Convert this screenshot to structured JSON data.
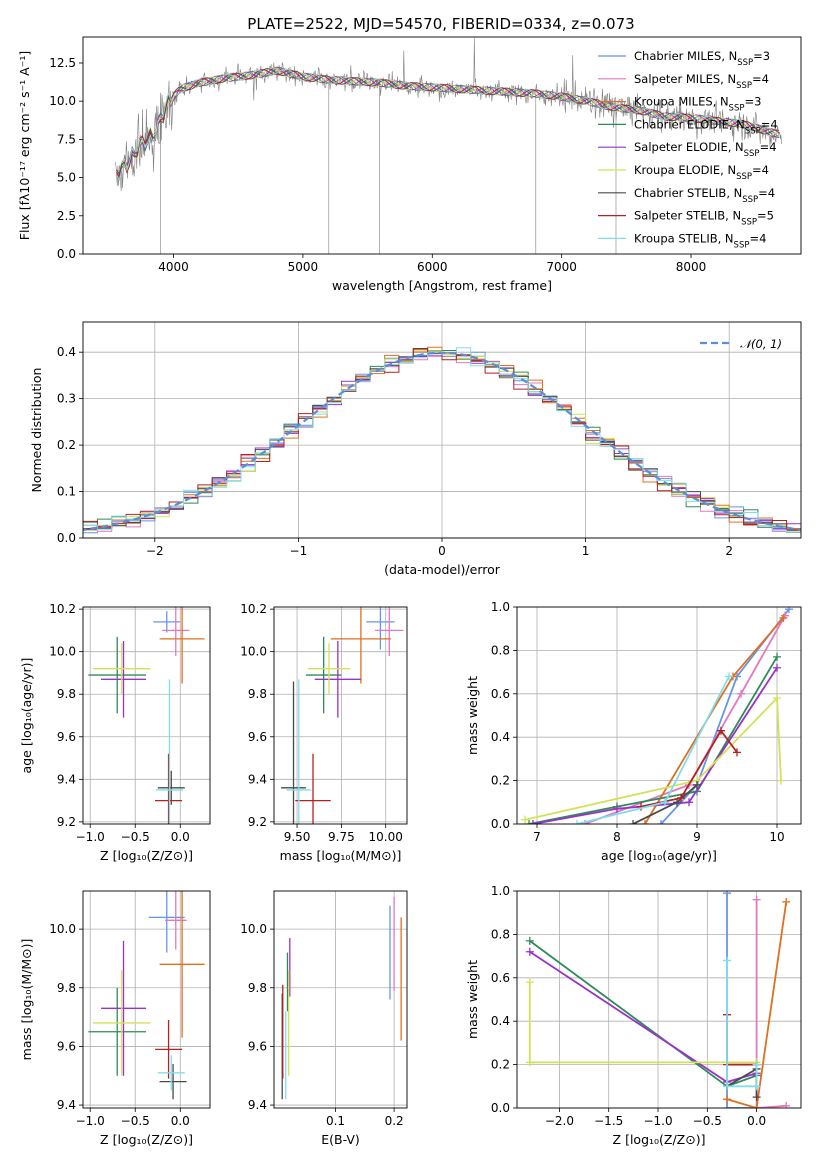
{
  "title": "PLATE=2522, MJD=54570, FIBERID=0334, z=0.073",
  "colors": {
    "Chabrier MILES": "#6495ed",
    "Salpeter MILES": "#e377c2",
    "Kroupa MILES": "#e07020",
    "Chabrier ELODIE": "#2e8b57",
    "Salpeter ELODIE": "#9932cc",
    "Kroupa ELODIE": "#d4e157",
    "Chabrier STELIB": "#4b4b4b",
    "Salpeter STELIB": "#b22222",
    "Kroupa STELIB": "#80deea",
    "data": "#808080",
    "normal": "#5b8ed6"
  },
  "chart_data": [
    {
      "id": "spectrum",
      "type": "line",
      "title": "PLATE=2522, MJD=54570, FIBERID=0334, z=0.073",
      "xlabel": "wavelength [Angstrom, rest frame]",
      "ylabel": "Flux [fλ10⁻¹⁷ erg cm⁻² s⁻¹ A⁻¹]",
      "xlim": [
        3300,
        8850
      ],
      "ylim": [
        0,
        14.2
      ],
      "xticks": [
        4000,
        5000,
        6000,
        7000,
        8000
      ],
      "yticks": [
        0.0,
        2.5,
        5.0,
        7.5,
        10.0,
        12.5
      ],
      "xticklabels": [
        "4000",
        "5000",
        "6000",
        "7000",
        "8000"
      ],
      "yticklabels": [
        "0.0",
        "2.5",
        "5.0",
        "7.5",
        "10.0",
        "12.5"
      ],
      "continuum": [
        [
          3550,
          5.2
        ],
        [
          3650,
          6.0
        ],
        [
          3750,
          7.2
        ],
        [
          3850,
          7.8
        ],
        [
          3950,
          9.8
        ],
        [
          4050,
          10.8
        ],
        [
          4200,
          11.2
        ],
        [
          4400,
          11.5
        ],
        [
          4600,
          11.7
        ],
        [
          4800,
          12.0
        ],
        [
          5000,
          11.6
        ],
        [
          5200,
          11.4
        ],
        [
          5400,
          11.3
        ],
        [
          5600,
          11.2
        ],
        [
          5800,
          11.0
        ],
        [
          6000,
          10.9
        ],
        [
          6200,
          10.8
        ],
        [
          6400,
          10.7
        ],
        [
          6600,
          10.6
        ],
        [
          6800,
          10.5
        ],
        [
          7000,
          10.3
        ],
        [
          7200,
          10.0
        ],
        [
          7400,
          9.6
        ],
        [
          7600,
          9.4
        ],
        [
          7800,
          9.0
        ],
        [
          8000,
          8.9
        ],
        [
          8200,
          8.7
        ],
        [
          8400,
          8.5
        ],
        [
          8600,
          8.0
        ],
        [
          8700,
          7.8
        ]
      ],
      "legend": [
        {
          "name": "Chabrier MILES, N",
          "sub": "SSP",
          "rest": "=3"
        },
        {
          "name": "Salpeter MILES, N",
          "sub": "SSP",
          "rest": "=4"
        },
        {
          "name": "Kroupa MILES, N",
          "sub": "SSP",
          "rest": "=3"
        },
        {
          "name": "Chabrier ELODIE, N",
          "sub": "SSP",
          "rest": "=4"
        },
        {
          "name": "Salpeter ELODIE, N",
          "sub": "SSP",
          "rest": "=4"
        },
        {
          "name": "Kroupa ELODIE, N",
          "sub": "SSP",
          "rest": "=4"
        },
        {
          "name": "Chabrier STELIB, N",
          "sub": "SSP",
          "rest": "=4"
        },
        {
          "name": "Salpeter STELIB, N",
          "sub": "SSP",
          "rest": "=5"
        },
        {
          "name": "Kroupa STELIB, N",
          "sub": "SSP",
          "rest": "=4"
        }
      ]
    },
    {
      "id": "residuals",
      "type": "line",
      "xlabel": "(data-model)/error",
      "ylabel": "Normed distribution",
      "xlim": [
        -2.5,
        2.5
      ],
      "ylim": [
        0,
        0.465
      ],
      "xticks": [
        -2,
        -1,
        0,
        1,
        2
      ],
      "yticks": [
        0.0,
        0.1,
        0.2,
        0.3,
        0.4
      ],
      "xticklabels": [
        "−2",
        "−1",
        "0",
        "1",
        "2"
      ],
      "yticklabels": [
        "0.0",
        "0.1",
        "0.2",
        "0.3",
        "0.4"
      ],
      "bin_width": 0.1,
      "legend": "𝒩(0, 1)"
    },
    {
      "id": "age-vs-Z",
      "type": "scatter",
      "xlabel": "Z [log₁₀(Z/Z⊙)]",
      "ylabel": "age  [log₁₀(age/yr)]",
      "xlim": [
        -1.08,
        0.33
      ],
      "ylim": [
        9.19,
        10.21
      ],
      "xticks": [
        -1.0,
        -0.5,
        0.0
      ],
      "yticks": [
        9.2,
        9.4,
        9.6,
        9.8,
        10.0,
        10.2
      ],
      "xticklabels": [
        "−1.0",
        "−0.5",
        "0.0"
      ],
      "yticklabels": [
        "9.2",
        "9.4",
        "9.6",
        "9.8",
        "10.0",
        "10.2"
      ],
      "points": [
        {
          "model": "Chabrier MILES",
          "x": -0.15,
          "xerr": 0.15,
          "y": 10.14,
          "yerr": 0.05
        },
        {
          "model": "Salpeter MILES",
          "x": -0.05,
          "xerr": 0.15,
          "y": 10.1,
          "yerr": 0.12
        },
        {
          "model": "Kroupa MILES",
          "x": 0.02,
          "xerr": 0.25,
          "y": 10.06,
          "yerr": 0.21
        },
        {
          "model": "Chabrier ELODIE",
          "x": -0.7,
          "xerr": 0.32,
          "y": 9.89,
          "yerr": 0.18
        },
        {
          "model": "Salpeter ELODIE",
          "x": -0.63,
          "xerr": 0.25,
          "y": 9.87,
          "yerr": 0.18
        },
        {
          "model": "Kroupa ELODIE",
          "x": -0.65,
          "xerr": 0.32,
          "y": 9.92,
          "yerr": 0.12
        },
        {
          "model": "Chabrier STELIB",
          "x": -0.1,
          "xerr": 0.15,
          "y": 9.36,
          "yerr": 0.08
        },
        {
          "model": "Salpeter STELIB",
          "x": -0.13,
          "xerr": 0.15,
          "y": 9.3,
          "yerr": 0.22
        },
        {
          "model": "Kroupa STELIB",
          "x": -0.12,
          "xerr": 0.15,
          "y": 9.35,
          "yerr": 0.52
        }
      ]
    },
    {
      "id": "age-vs-mass",
      "type": "scatter",
      "xlabel": "mass [log₁₀(M/M⊙)]",
      "xlim": [
        9.37,
        10.12
      ],
      "ylim": [
        9.19,
        10.21
      ],
      "xticks": [
        9.5,
        9.75,
        10.0
      ],
      "yticks": [
        9.2,
        9.4,
        9.6,
        9.8,
        10.0,
        10.2
      ],
      "xticklabels": [
        "9.50",
        "9.75",
        "10.00"
      ],
      "yticklabels": [
        "9.2",
        "9.4",
        "9.6",
        "9.8",
        "10.0",
        "10.2"
      ],
      "points": [
        {
          "model": "Chabrier MILES",
          "x": 9.97,
          "xerr": 0.08,
          "y": 10.14,
          "yerr": 0.13
        },
        {
          "model": "Salpeter MILES",
          "x": 10.02,
          "xerr": 0.08,
          "y": 10.1,
          "yerr": 0.12
        },
        {
          "model": "Kroupa MILES",
          "x": 9.86,
          "xerr": 0.17,
          "y": 10.06,
          "yerr": 0.21
        },
        {
          "model": "Chabrier ELODIE",
          "x": 9.65,
          "xerr": 0.1,
          "y": 9.89,
          "yerr": 0.18
        },
        {
          "model": "Salpeter ELODIE",
          "x": 9.73,
          "xerr": 0.13,
          "y": 9.87,
          "yerr": 0.18
        },
        {
          "model": "Kroupa ELODIE",
          "x": 9.68,
          "xerr": 0.12,
          "y": 9.92,
          "yerr": 0.12
        },
        {
          "model": "Chabrier STELIB",
          "x": 9.48,
          "xerr": 0.07,
          "y": 9.36,
          "yerr": 0.5
        },
        {
          "model": "Salpeter STELIB",
          "x": 9.59,
          "xerr": 0.1,
          "y": 9.3,
          "yerr": 0.22
        },
        {
          "model": "Kroupa STELIB",
          "x": 9.51,
          "xerr": 0.07,
          "y": 9.35,
          "yerr": 0.52
        }
      ]
    },
    {
      "id": "weight-vs-age",
      "type": "line",
      "xlabel": "age  [log₁₀(age/yr)]",
      "ylabel": "mass weight",
      "xlim": [
        6.75,
        10.3
      ],
      "ylim": [
        0,
        1.0
      ],
      "xticks": [
        7,
        8,
        9,
        10
      ],
      "yticks": [
        0.0,
        0.2,
        0.4,
        0.6,
        0.8,
        1.0
      ],
      "xticklabels": [
        "7",
        "8",
        "9",
        "10"
      ],
      "yticklabels": [
        "0.0",
        "0.2",
        "0.4",
        "0.6",
        "0.8",
        "1.0"
      ],
      "series": [
        {
          "model": "Chabrier MILES",
          "x": [
            8.55,
            9.0,
            9.5,
            10.15
          ],
          "y": [
            0.0,
            0.18,
            0.68,
            0.99
          ]
        },
        {
          "model": "Salpeter MILES",
          "x": [
            7.6,
            8.9,
            9.55,
            10.1
          ],
          "y": [
            0.0,
            0.18,
            0.6,
            0.96
          ]
        },
        {
          "model": "Kroupa MILES",
          "x": [
            8.35,
            9.45,
            10.08
          ],
          "y": [
            0.0,
            0.68,
            0.95
          ]
        },
        {
          "model": "Chabrier ELODIE",
          "x": [
            6.9,
            8.0,
            9.0,
            10.0
          ],
          "y": [
            0.0,
            0.08,
            0.15,
            0.77
          ]
        },
        {
          "model": "Salpeter ELODIE",
          "x": [
            6.95,
            8.0,
            8.9,
            10.0
          ],
          "y": [
            0.0,
            0.07,
            0.1,
            0.72
          ]
        },
        {
          "model": "Kroupa ELODIE",
          "x": [
            6.85,
            9.0,
            10.0,
            10.05
          ],
          "y": [
            0.02,
            0.2,
            0.58,
            0.2
          ]
        },
        {
          "model": "Chabrier STELIB",
          "x": [
            8.2,
            8.75,
            9.0
          ],
          "y": [
            0.0,
            0.1,
            0.18
          ]
        },
        {
          "model": "Salpeter STELIB",
          "x": [
            8.3,
            8.8,
            9.3,
            9.5
          ],
          "y": [
            0.08,
            0.12,
            0.43,
            0.33
          ]
        },
        {
          "model": "Kroupa STELIB",
          "x": [
            7.5,
            8.6,
            9.4
          ],
          "y": [
            0.0,
            0.1,
            0.68
          ]
        }
      ]
    },
    {
      "id": "mass-vs-Z",
      "type": "scatter",
      "xlabel": "Z [log₁₀(Z/Z⊙)]",
      "ylabel": "mass [log₁₀(M/M⊙)]",
      "xlim": [
        -1.08,
        0.33
      ],
      "ylim": [
        9.39,
        10.13
      ],
      "xticks": [
        -1.0,
        -0.5,
        0.0
      ],
      "yticks": [
        9.4,
        9.6,
        9.8,
        10.0
      ],
      "xticklabels": [
        "−1.0",
        "−0.5",
        "0.0"
      ],
      "yticklabels": [
        "9.4",
        "9.6",
        "9.8",
        "10.0"
      ],
      "points": [
        {
          "model": "Chabrier MILES",
          "x": -0.15,
          "xerr": 0.2,
          "y": 10.04,
          "yerr": 0.12
        },
        {
          "model": "Salpeter MILES",
          "x": -0.05,
          "xerr": 0.12,
          "y": 10.03,
          "yerr": 0.1
        },
        {
          "model": "Kroupa MILES",
          "x": 0.02,
          "xerr": 0.25,
          "y": 9.88,
          "yerr": 0.25
        },
        {
          "model": "Chabrier ELODIE",
          "x": -0.7,
          "xerr": 0.32,
          "y": 9.65,
          "yerr": 0.15
        },
        {
          "model": "Salpeter ELODIE",
          "x": -0.63,
          "xerr": 0.25,
          "y": 9.73,
          "yerr": 0.23
        },
        {
          "model": "Kroupa ELODIE",
          "x": -0.65,
          "xerr": 0.32,
          "y": 9.68,
          "yerr": 0.18
        },
        {
          "model": "Chabrier STELIB",
          "x": -0.08,
          "xerr": 0.15,
          "y": 9.48,
          "yerr": 0.06
        },
        {
          "model": "Salpeter STELIB",
          "x": -0.13,
          "xerr": 0.15,
          "y": 9.59,
          "yerr": 0.1
        },
        {
          "model": "Kroupa STELIB",
          "x": -0.1,
          "xerr": 0.15,
          "y": 9.51,
          "yerr": 0.06
        }
      ]
    },
    {
      "id": "mass-vs-ebv",
      "type": "scatter",
      "xlabel": "E(B-V)",
      "xlim": [
        -0.005,
        0.222
      ],
      "ylim": [
        9.39,
        10.13
      ],
      "xticks": [
        0.1,
        0.2
      ],
      "yticks": [
        9.4,
        9.6,
        9.8,
        10.0
      ],
      "xticklabels": [
        "0.1",
        "0.2"
      ],
      "yticklabels": [
        "9.4",
        "9.6",
        "9.8",
        "10.0"
      ],
      "points": [
        {
          "model": "Chabrier MILES",
          "x": 0.193,
          "y": 9.92,
          "yerr": 0.16
        },
        {
          "model": "Salpeter MILES",
          "x": 0.2,
          "y": 9.95,
          "yerr": 0.16
        },
        {
          "model": "Kroupa MILES",
          "x": 0.212,
          "y": 9.83,
          "yerr": 0.21
        },
        {
          "model": "Chabrier ELODIE",
          "x": 0.018,
          "y": 9.82,
          "yerr": 0.1
        },
        {
          "model": "Salpeter ELODIE",
          "x": 0.022,
          "y": 9.87,
          "yerr": 0.1
        },
        {
          "model": "Kroupa ELODIE",
          "x": 0.02,
          "y": 9.68,
          "yerr": 0.18
        },
        {
          "model": "Chabrier STELIB",
          "x": 0.009,
          "y": 9.6,
          "yerr": 0.18
        },
        {
          "model": "Salpeter STELIB",
          "x": 0.01,
          "y": 9.65,
          "yerr": 0.16
        },
        {
          "model": "Kroupa STELIB",
          "x": 0.015,
          "y": 9.57,
          "yerr": 0.15
        }
      ]
    },
    {
      "id": "weight-vs-Z",
      "type": "line",
      "xlabel": "Z [log₁₀(Z/Z⊙)]",
      "ylabel": "mass weight",
      "xlim": [
        -2.43,
        0.45
      ],
      "ylim": [
        0,
        1.0
      ],
      "xticks": [
        -2.0,
        -1.5,
        -1.0,
        -0.5,
        0.0
      ],
      "yticks": [
        0.0,
        0.2,
        0.4,
        0.6,
        0.8,
        1.0
      ],
      "xticklabels": [
        "−2.0",
        "−1.5",
        "−1.0",
        "−0.5",
        "0.0"
      ],
      "yticklabels": [
        "0.0",
        "0.2",
        "0.4",
        "0.6",
        "0.8",
        "1.0"
      ],
      "series": [
        {
          "model": "Chabrier MILES",
          "x": [
            -0.3,
            -0.3,
            0.0
          ],
          "y": [
            0.99,
            0.0,
            0.0
          ]
        },
        {
          "model": "Salpeter MILES",
          "x": [
            0.0,
            0.0,
            0.3
          ],
          "y": [
            0.96,
            0.0,
            0.01
          ]
        },
        {
          "model": "Kroupa MILES",
          "x": [
            -0.3,
            0.0,
            0.3
          ],
          "y": [
            0.04,
            0.0,
            0.95
          ]
        },
        {
          "model": "Chabrier ELODIE",
          "x": [
            -2.3,
            -0.3,
            0.0
          ],
          "y": [
            0.77,
            0.1,
            0.15
          ]
        },
        {
          "model": "Salpeter ELODIE",
          "x": [
            -2.3,
            -0.3,
            0.0
          ],
          "y": [
            0.72,
            0.12,
            0.16
          ]
        },
        {
          "model": "Kroupa ELODIE",
          "x": [
            -2.3,
            -2.3,
            0.0,
            0.0
          ],
          "y": [
            0.58,
            0.21,
            0.21,
            0.2
          ]
        },
        {
          "model": "Chabrier STELIB",
          "x": [
            -0.3,
            0.0,
            0.0
          ],
          "y": [
            0.1,
            0.18,
            0.05
          ]
        },
        {
          "model": "Salpeter STELIB",
          "x": [
            -0.3,
            -0.3,
            0.0,
            0.0
          ],
          "y": [
            0.43,
            0.2,
            0.2,
            0.1
          ]
        },
        {
          "model": "Kroupa STELIB",
          "x": [
            -0.3,
            -0.3,
            0.0,
            0.0
          ],
          "y": [
            0.68,
            0.1,
            0.1,
            0.2
          ]
        }
      ]
    }
  ]
}
